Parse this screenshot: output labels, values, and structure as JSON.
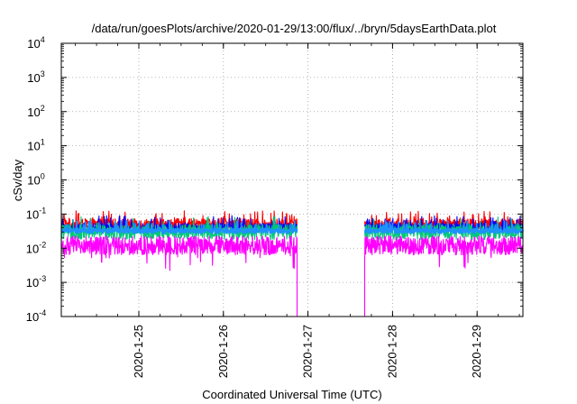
{
  "chart_data": {
    "type": "line",
    "title": "/data/run/goesPlots/archive/2020-01-29/13:00/flux/../bryn/5daysEarthData.plot",
    "xlabel": "Coordinated Universal Time (UTC)",
    "ylabel": "cSv/day",
    "yscale": "log",
    "ylim": [
      0.0001,
      10000
    ],
    "xlim": [
      "2020-01-24T02:00",
      "2020-01-29T13:00"
    ],
    "grid": true,
    "legend": "none",
    "y_ticks": [
      {
        "value": 0.0001,
        "base": "10",
        "exp": "-4"
      },
      {
        "value": 0.001,
        "base": "10",
        "exp": "-3"
      },
      {
        "value": 0.01,
        "base": "10",
        "exp": "-2"
      },
      {
        "value": 0.1,
        "base": "10",
        "exp": "-1"
      },
      {
        "value": 1,
        "base": "10",
        "exp": "0"
      },
      {
        "value": 10,
        "base": "10",
        "exp": "1"
      },
      {
        "value": 100,
        "base": "10",
        "exp": "2"
      },
      {
        "value": 1000,
        "base": "10",
        "exp": "3"
      },
      {
        "value": 10000,
        "base": "10",
        "exp": "4"
      }
    ],
    "x_ticks": [
      {
        "value": "2020-01-25T00:00",
        "label": "2020-1-25"
      },
      {
        "value": "2020-01-26T00:00",
        "label": "2020-1-26"
      },
      {
        "value": "2020-01-27T00:00",
        "label": "2020-1-27"
      },
      {
        "value": "2020-01-28T00:00",
        "label": "2020-1-28"
      },
      {
        "value": "2020-01-29T00:00",
        "label": "2020-1-29"
      }
    ],
    "data_gap": {
      "start": "2020-01-26T21:00",
      "end": "2020-01-27T16:00"
    },
    "series": [
      {
        "color": "#ff0000",
        "base": 0.05,
        "spread": 0.33,
        "spikes": 0.1
      },
      {
        "color": "#0000ff",
        "base": 0.04,
        "spread": 0.25,
        "spikes": 0.07
      },
      {
        "color": "#00c878",
        "base": 0.03,
        "spread": 0.45,
        "spikes": 0.05
      },
      {
        "color": "#1e90ff",
        "base": 0.032,
        "spread": 0.15,
        "spikes": 0.06
      },
      {
        "color": "#ff00ff",
        "base": 0.012,
        "spread": 0.55,
        "spikes": 0.03
      }
    ]
  }
}
